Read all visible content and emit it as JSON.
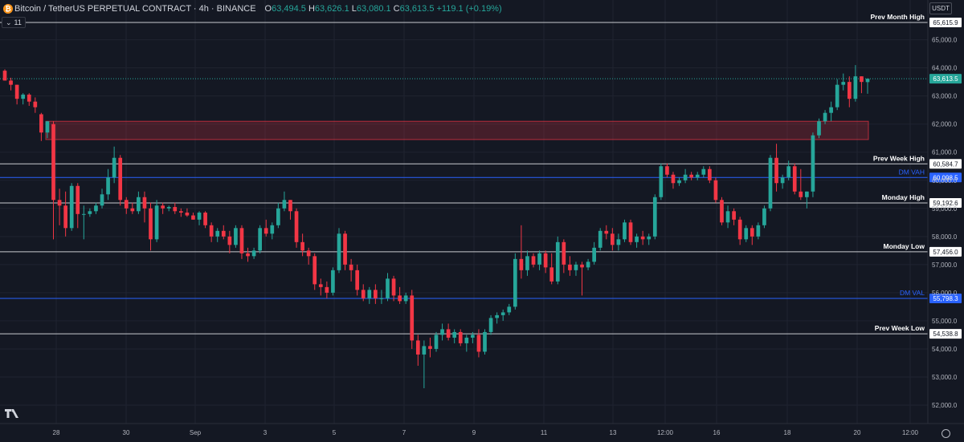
{
  "header": {
    "logo": "bitcoin-logo",
    "symbol": "Bitcoin / TetherUS PERPETUAL CONTRACT · 4h · BINANCE",
    "o_label": "O",
    "o_value": "63,494.5",
    "h_label": "H",
    "h_value": "63,626.1",
    "l_label": "L",
    "l_value": "63,080.1",
    "c_label": "C",
    "c_value": "63,613.5 +119.1 (+0.19%)"
  },
  "indicator_toggle": {
    "icon": "chevron-down-icon",
    "count": "11"
  },
  "currency_button": "USDT",
  "footer": {
    "logo": "tradingview-logo",
    "settings_icon": "gear-icon"
  },
  "colors": {
    "background": "#141823",
    "up": "#26a69a",
    "down": "#f23645",
    "level_line": "#c8cacf",
    "dm_line": "#2962ff",
    "zone": "#f23645"
  },
  "chart_data": {
    "type": "candlestick",
    "y_ticks": [
      "52,000.0",
      "53,000.0",
      "54,000.0",
      "55,000.0",
      "56,000.0",
      "57,000.0",
      "58,000.0",
      "59,000.0",
      "60,000.0",
      "61,000.0",
      "62,000.0",
      "63,000.0",
      "64,000.0",
      "65,000.0"
    ],
    "x_ticks": [
      "28",
      "30",
      "Sep",
      "3",
      "5",
      "7",
      "9",
      "11",
      "13",
      "12:00",
      "16",
      "18",
      "20",
      "12:00"
    ],
    "last_price": "63,613.5",
    "levels": [
      {
        "name": "Prev Month High",
        "value": 65615.9,
        "price_label": "65,615.9",
        "kind": "white"
      },
      {
        "name": "Prev Week High",
        "value": 60584.7,
        "price_label": "60,584.7",
        "kind": "white"
      },
      {
        "name": "DM VAH",
        "value": 60098.5,
        "price_label": "60,098.5",
        "kind": "blue"
      },
      {
        "name": "Monday High",
        "value": 59192.6,
        "price_label": "59,192.6",
        "kind": "white"
      },
      {
        "name": "Monday Low",
        "value": 57456.0,
        "price_label": "57,456.0",
        "kind": "white"
      },
      {
        "name": "DM VAL",
        "value": 55798.3,
        "price_label": "55,798.3",
        "kind": "blue"
      },
      {
        "name": "Prev Week Low",
        "value": 54538.8,
        "price_label": "54,538.8",
        "kind": "white"
      }
    ],
    "zone": {
      "top": 62100,
      "bottom": 61450
    },
    "candles": [
      [
        63900,
        63950,
        63550,
        63550
      ],
      [
        63550,
        63650,
        63200,
        63400
      ],
      [
        63400,
        63400,
        62700,
        62900
      ],
      [
        62900,
        63100,
        62700,
        63050
      ],
      [
        63050,
        63100,
        62650,
        62800
      ],
      [
        62800,
        62950,
        62400,
        62600
      ],
      [
        62350,
        62400,
        61400,
        61700
      ],
      [
        61700,
        62100,
        61500,
        62100
      ],
      [
        62000,
        62100,
        57900,
        59300
      ],
      [
        59300,
        59700,
        58400,
        59100
      ],
      [
        59100,
        59600,
        58000,
        58300
      ],
      [
        58300,
        59900,
        58200,
        59800
      ],
      [
        59800,
        59900,
        58300,
        58800
      ],
      [
        58800,
        59100,
        57900,
        58800
      ],
      [
        58800,
        59000,
        58700,
        58900
      ],
      [
        58900,
        59200,
        58800,
        59100
      ],
      [
        59100,
        59700,
        59000,
        59500
      ],
      [
        59500,
        60400,
        59300,
        60100
      ],
      [
        60100,
        61200,
        59900,
        60800
      ],
      [
        60800,
        60900,
        59100,
        59300
      ],
      [
        59300,
        59400,
        58800,
        59000
      ],
      [
        59000,
        59200,
        58800,
        58900
      ],
      [
        58900,
        59600,
        58800,
        59400
      ],
      [
        59400,
        59600,
        58500,
        59000
      ],
      [
        59000,
        59200,
        57500,
        57900
      ],
      [
        57900,
        59300,
        57800,
        59100
      ],
      [
        59100,
        59200,
        58800,
        59000
      ],
      [
        59000,
        59100,
        58900,
        59050
      ],
      [
        59050,
        59200,
        58800,
        58900
      ],
      [
        58900,
        59000,
        58700,
        58850
      ],
      [
        58850,
        59000,
        58700,
        58750
      ],
      [
        58750,
        58850,
        58600,
        58600
      ],
      [
        58600,
        58900,
        58400,
        58850
      ],
      [
        58850,
        58900,
        58300,
        58400
      ],
      [
        58400,
        58500,
        57800,
        58000
      ],
      [
        58000,
        58300,
        57800,
        58200
      ],
      [
        58200,
        58400,
        57900,
        58000
      ],
      [
        58000,
        58200,
        57400,
        57700
      ],
      [
        57700,
        58400,
        57600,
        58300
      ],
      [
        58300,
        58400,
        57200,
        57400
      ],
      [
        57400,
        57600,
        57100,
        57300
      ],
      [
        57300,
        57600,
        57200,
        57500
      ],
      [
        57500,
        58400,
        57400,
        58300
      ],
      [
        58300,
        58600,
        58000,
        58100
      ],
      [
        58100,
        58500,
        57900,
        58400
      ],
      [
        58400,
        59200,
        58300,
        59000
      ],
      [
        59000,
        59600,
        58900,
        59300
      ],
      [
        59300,
        59300,
        58600,
        58900
      ],
      [
        58900,
        59000,
        57600,
        57800
      ],
      [
        57800,
        58100,
        57300,
        57500
      ],
      [
        57500,
        57600,
        57000,
        57300
      ],
      [
        57300,
        57400,
        56100,
        56300
      ],
      [
        56300,
        56500,
        55900,
        56200
      ],
      [
        56200,
        56400,
        55800,
        56000
      ],
      [
        56000,
        56900,
        55900,
        56800
      ],
      [
        56800,
        58300,
        56700,
        58100
      ],
      [
        58100,
        58200,
        56800,
        57000
      ],
      [
        57000,
        57200,
        56400,
        56800
      ],
      [
        56800,
        57000,
        55900,
        56100
      ],
      [
        56100,
        56300,
        55700,
        55800
      ],
      [
        55800,
        56200,
        55600,
        56100
      ],
      [
        56100,
        56300,
        55600,
        55800
      ],
      [
        55800,
        56100,
        55600,
        55800
      ],
      [
        55800,
        56700,
        55700,
        56500
      ],
      [
        56500,
        56600,
        55700,
        55900
      ],
      [
        55900,
        56200,
        55600,
        55700
      ],
      [
        55700,
        56000,
        55600,
        55900
      ],
      [
        55900,
        56100,
        54000,
        54300
      ],
      [
        54300,
        54500,
        53400,
        53800
      ],
      [
        53800,
        54300,
        52600,
        54100
      ],
      [
        54100,
        54400,
        53700,
        54000
      ],
      [
        54000,
        54600,
        53900,
        54500
      ],
      [
        54500,
        54900,
        54300,
        54700
      ],
      [
        54700,
        54900,
        54300,
        54400
      ],
      [
        54400,
        54700,
        54200,
        54600
      ],
      [
        54600,
        54700,
        54100,
        54200
      ],
      [
        54200,
        54500,
        53900,
        54400
      ],
      [
        54400,
        54600,
        54200,
        54500
      ],
      [
        54500,
        54700,
        53700,
        53900
      ],
      [
        53900,
        54700,
        53800,
        54600
      ],
      [
        54600,
        55200,
        54500,
        55100
      ],
      [
        55100,
        55300,
        54900,
        55200
      ],
      [
        55200,
        55400,
        55000,
        55300
      ],
      [
        55300,
        55600,
        55200,
        55500
      ],
      [
        55500,
        57400,
        55400,
        57200
      ],
      [
        57200,
        58400,
        56500,
        56800
      ],
      [
        56800,
        57500,
        56600,
        57300
      ],
      [
        57300,
        57400,
        56900,
        57000
      ],
      [
        57000,
        57500,
        56800,
        57400
      ],
      [
        57400,
        57500,
        56700,
        56900
      ],
      [
        56900,
        57400,
        56300,
        56400
      ],
      [
        56400,
        58000,
        56300,
        57800
      ],
      [
        57800,
        57900,
        56700,
        57000
      ],
      [
        57000,
        57300,
        56600,
        56800
      ],
      [
        56800,
        57100,
        56600,
        57000
      ],
      [
        57000,
        57100,
        55900,
        56900
      ],
      [
        56900,
        57200,
        56800,
        57100
      ],
      [
        57100,
        57800,
        57000,
        57600
      ],
      [
        57600,
        58300,
        57500,
        58200
      ],
      [
        58200,
        58400,
        57900,
        58100
      ],
      [
        58100,
        58300,
        57500,
        57700
      ],
      [
        57700,
        58100,
        57500,
        57900
      ],
      [
        57900,
        58600,
        57800,
        58500
      ],
      [
        58500,
        58600,
        57700,
        57800
      ],
      [
        57800,
        58100,
        57600,
        58000
      ],
      [
        58000,
        58200,
        57700,
        57900
      ],
      [
        57900,
        58100,
        57700,
        58000
      ],
      [
        58000,
        59500,
        57900,
        59400
      ],
      [
        59400,
        60600,
        59300,
        60500
      ],
      [
        60500,
        60600,
        60100,
        60200
      ],
      [
        60200,
        60300,
        59700,
        59900
      ],
      [
        59900,
        60100,
        59800,
        60000
      ],
      [
        60000,
        60400,
        59900,
        60200
      ],
      [
        60200,
        60300,
        60000,
        60100
      ],
      [
        60100,
        60300,
        60000,
        60200
      ],
      [
        60200,
        60500,
        60100,
        60400
      ],
      [
        60400,
        60500,
        59900,
        60000
      ],
      [
        60000,
        60100,
        59200,
        59300
      ],
      [
        59300,
        59400,
        58400,
        58500
      ],
      [
        58500,
        59100,
        58300,
        58900
      ],
      [
        58900,
        59000,
        58400,
        58600
      ],
      [
        58600,
        58700,
        57700,
        57900
      ],
      [
        57900,
        58400,
        57800,
        58300
      ],
      [
        58300,
        58400,
        57700,
        58000
      ],
      [
        58000,
        58500,
        57900,
        58400
      ],
      [
        58400,
        59100,
        58300,
        59000
      ],
      [
        59000,
        60900,
        58900,
        60800
      ],
      [
        60800,
        61300,
        59600,
        59900
      ],
      [
        59900,
        60200,
        59700,
        60100
      ],
      [
        60100,
        60700,
        60000,
        60500
      ],
      [
        60500,
        60600,
        59500,
        59600
      ],
      [
        59600,
        60400,
        59300,
        59400
      ],
      [
        59400,
        59600,
        59000,
        59600
      ],
      [
        59600,
        61700,
        59400,
        61600
      ],
      [
        61600,
        62200,
        61500,
        62100
      ],
      [
        62100,
        62500,
        62000,
        62400
      ],
      [
        62400,
        62800,
        62100,
        62600
      ],
      [
        62600,
        63600,
        62500,
        63400
      ],
      [
        63400,
        63800,
        63200,
        63500
      ],
      [
        63500,
        63700,
        62600,
        62900
      ],
      [
        62900,
        64100,
        62800,
        63700
      ],
      [
        63700,
        63700,
        63100,
        63500
      ],
      [
        63494.5,
        63626.1,
        63080.1,
        63613.5
      ]
    ]
  }
}
